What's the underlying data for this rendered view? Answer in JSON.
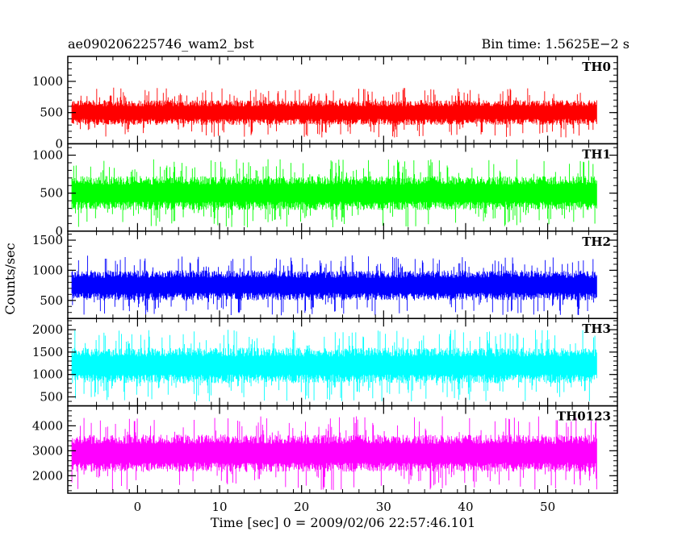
{
  "title_left": "ae090206225746_wam2_bst",
  "title_right": "Bin time: 1.5625E−2 s",
  "ylabel": "Counts/sec",
  "xlabel": "Time [sec] 0 = 2009/02/06 22:57:46.101",
  "chart_data": {
    "type": "line",
    "x_range": [
      -8.5,
      58.5
    ],
    "data_x_range": [
      -8.0,
      56.0
    ],
    "x_ticks": [
      0,
      10,
      20,
      30,
      40,
      50
    ],
    "x_tick_labels": [
      "0",
      "10",
      "20",
      "30",
      "40",
      "50"
    ],
    "series": [
      {
        "name": "TH0",
        "color": "#ff0000",
        "ylim": [
          0,
          1400
        ],
        "y_ticks": [
          0,
          500,
          1000
        ],
        "y_tick_labels": [
          "0",
          "500",
          "1000"
        ],
        "mean": 500,
        "noise_min": 100,
        "noise_max": 1200
      },
      {
        "name": "TH1",
        "color": "#00ff00",
        "ylim": [
          0,
          1150
        ],
        "y_ticks": [
          0,
          500,
          1000
        ],
        "y_tick_labels": [
          "0",
          "500",
          "1000"
        ],
        "mean": 500,
        "noise_min": 50,
        "noise_max": 1150
      },
      {
        "name": "TH2",
        "color": "#0000ff",
        "ylim": [
          200,
          1650
        ],
        "y_ticks": [
          500,
          1000,
          1500
        ],
        "y_tick_labels": [
          "500",
          "1000",
          "1500"
        ],
        "mean": 750,
        "noise_min": 250,
        "noise_max": 1600
      },
      {
        "name": "TH3",
        "color": "#00ffff",
        "ylim": [
          300,
          2250
        ],
        "y_ticks": [
          500,
          1000,
          1500,
          2000
        ],
        "y_tick_labels": [
          "500",
          "1000",
          "1500",
          "2000"
        ],
        "mean": 1200,
        "noise_min": 400,
        "noise_max": 2200
      },
      {
        "name": "TH0123",
        "color": "#ff00ff",
        "ylim": [
          1300,
          4800
        ],
        "y_ticks": [
          2000,
          3000,
          4000
        ],
        "y_tick_labels": [
          "2000",
          "3000",
          "4000"
        ],
        "mean": 2900,
        "noise_min": 1400,
        "noise_max": 4700
      }
    ]
  }
}
